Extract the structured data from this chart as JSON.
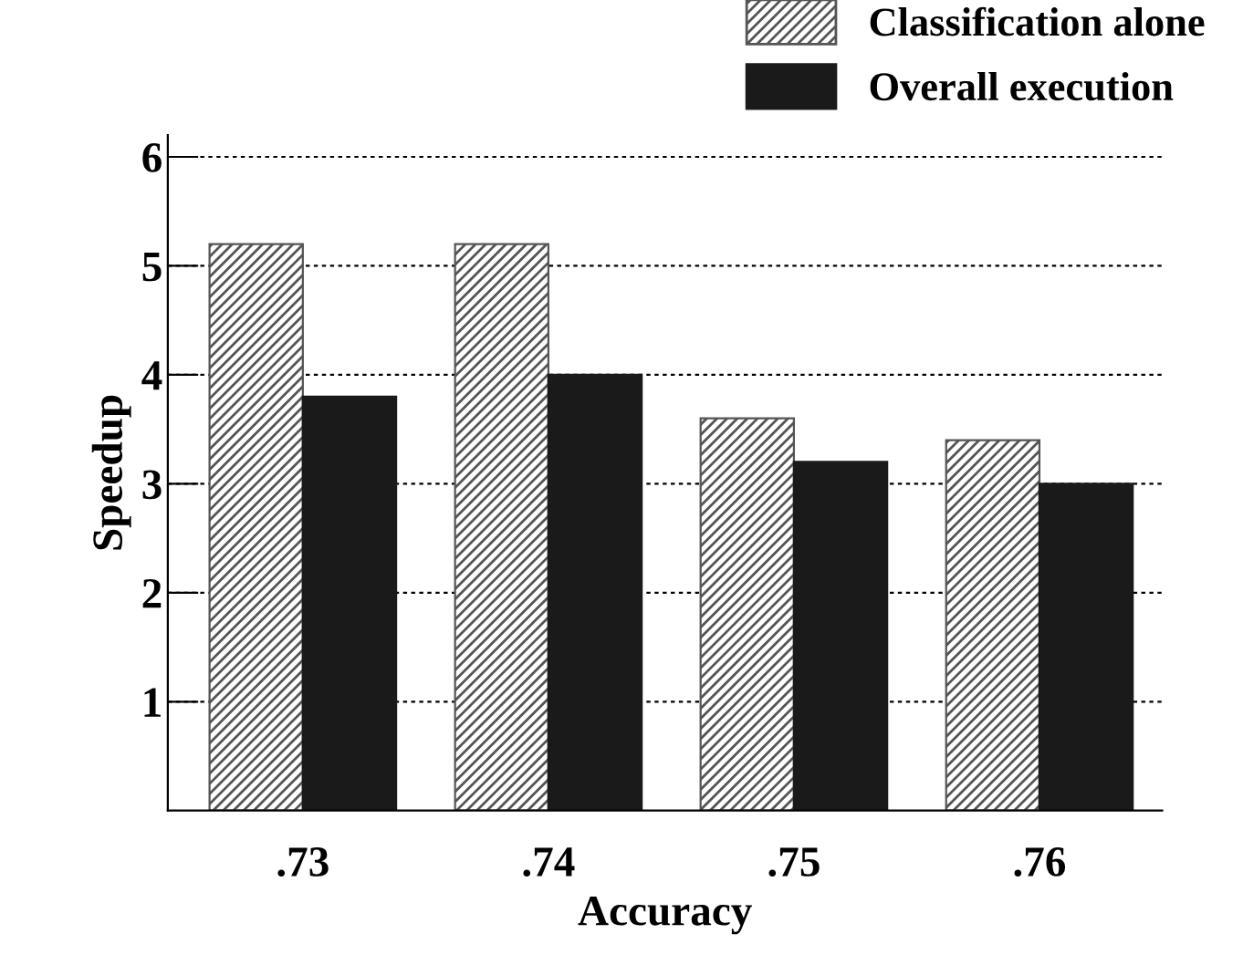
{
  "chart_data": {
    "type": "bar",
    "xlabel": "Accuracy",
    "ylabel": "Speedup",
    "categories": [
      ".73",
      ".74",
      ".75",
      ".76"
    ],
    "series": [
      {
        "name": "Classification alone",
        "color": "#555555",
        "values": [
          5.2,
          5.2,
          3.6,
          3.4
        ]
      },
      {
        "name": "Overall execution",
        "color": "#1a1a1a",
        "values": [
          3.8,
          4.0,
          3.2,
          3.0
        ]
      }
    ],
    "ylim": [
      0,
      6.2
    ],
    "yticks": [
      1,
      2,
      3,
      4,
      5,
      6
    ],
    "grid": "y",
    "legend": "top right"
  }
}
